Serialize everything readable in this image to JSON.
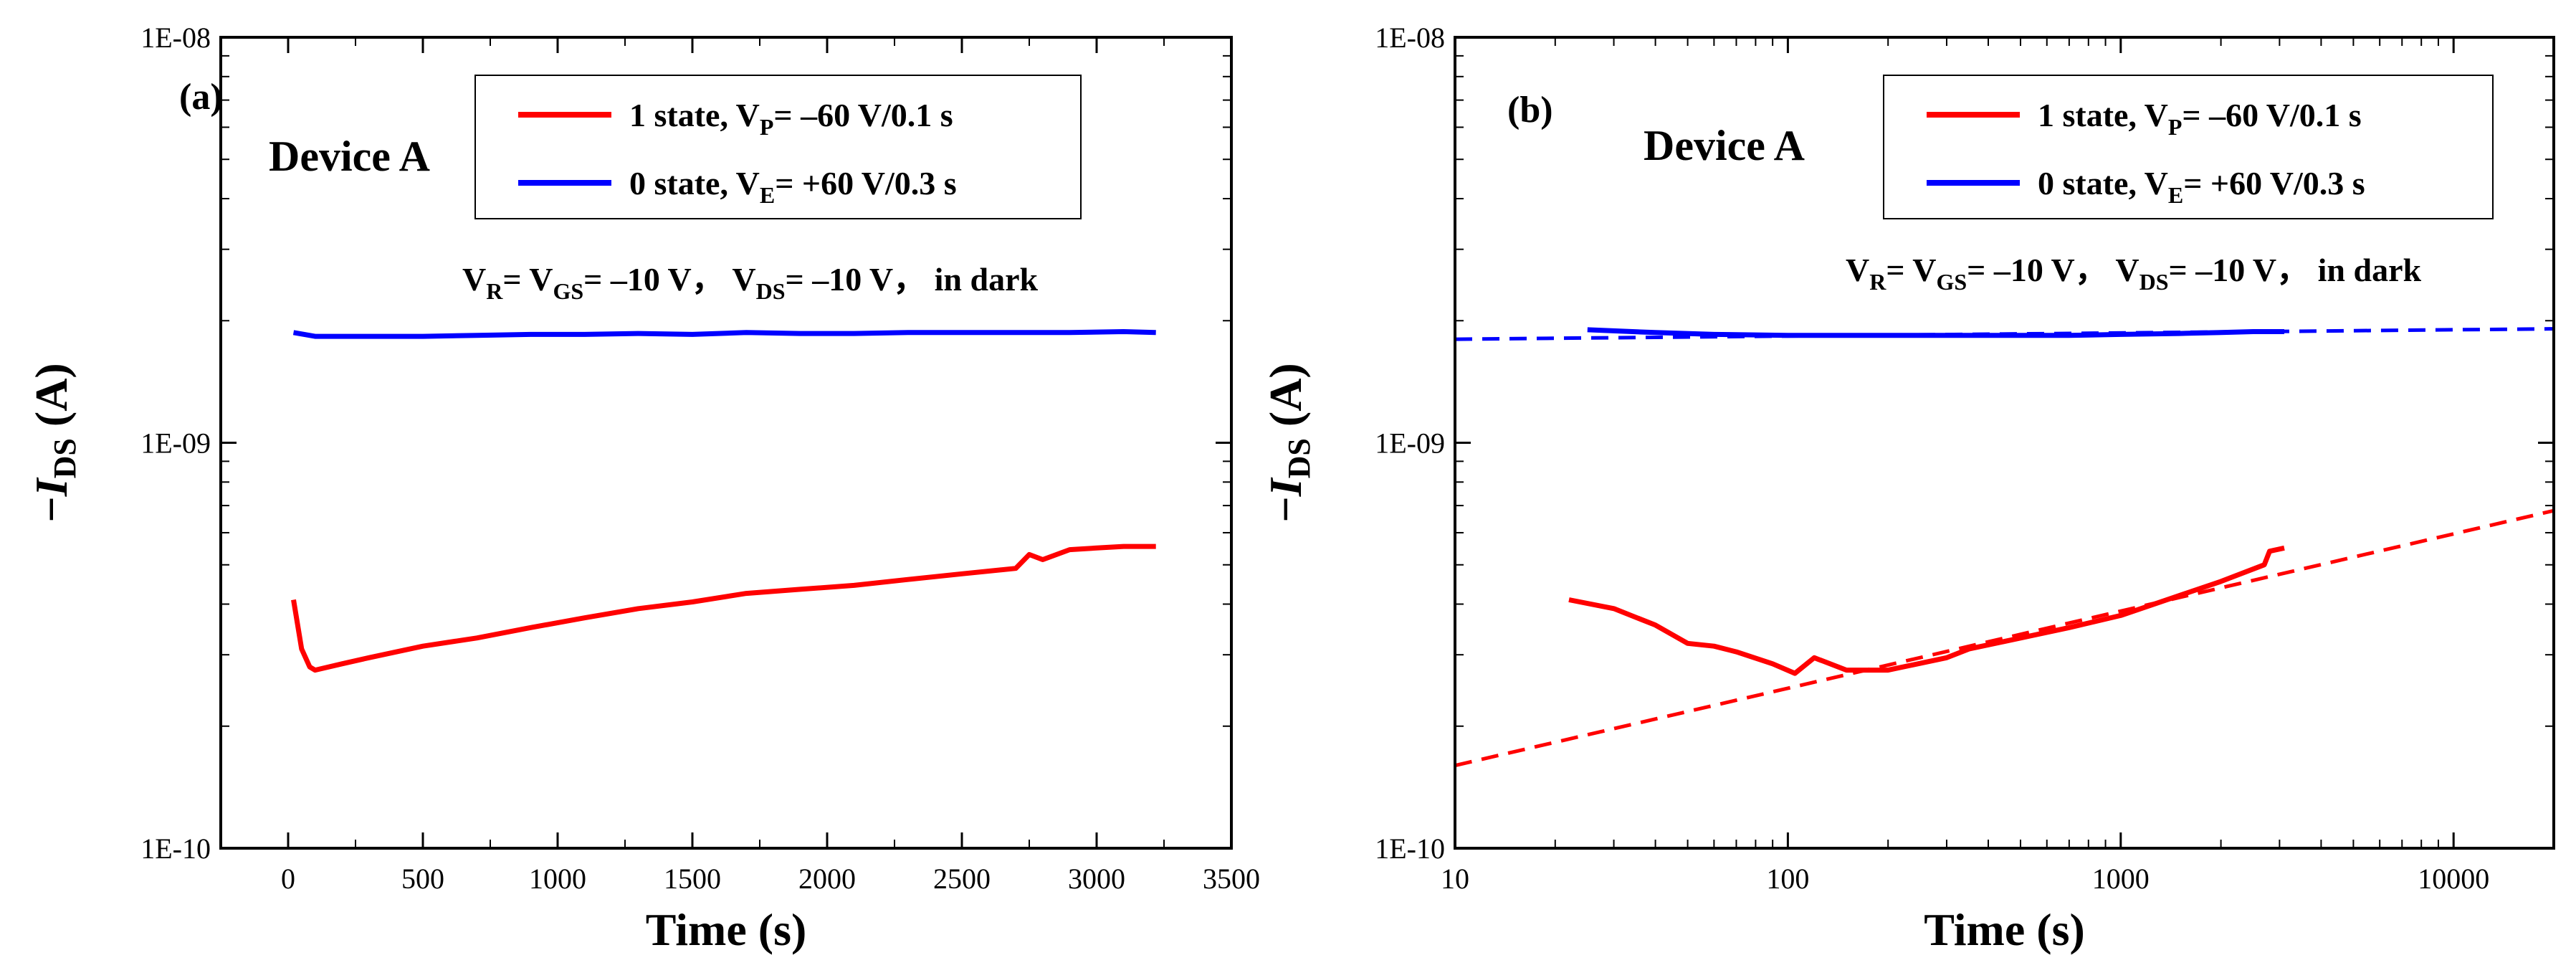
{
  "colors": {
    "state1": "#ff0000",
    "state0": "#0000ff",
    "axis": "#000000"
  },
  "chart_data": [
    {
      "type": "line",
      "panel_label": "(a)",
      "device_label": "Device  A",
      "xscale": "linear",
      "yscale": "log",
      "xlabel": "Time (s)",
      "ylabel": {
        "prefix": "−",
        "symbol": "I",
        "subscript": "DS",
        "unit": " (A)"
      },
      "xlim": [
        -250,
        3500
      ],
      "ylim": [
        1e-10,
        1e-08
      ],
      "xticks": [
        0,
        500,
        1000,
        1500,
        2000,
        2500,
        3000,
        3500
      ],
      "xtick_labels": [
        "0",
        "500",
        "1000",
        "1500",
        "2000",
        "2500",
        "3000",
        "3500"
      ],
      "yticks": [
        1e-10,
        1e-09,
        1e-08
      ],
      "ytick_labels": [
        "1E-10",
        "1E-09",
        "1E-08"
      ],
      "legend": [
        {
          "label": "1 state, V",
          "sub": "P",
          "rest": "= –60 V/0.1 s",
          "color": "#ff0000"
        },
        {
          "label": "0 state, V",
          "sub": "E",
          "rest": "= +60 V/0.3 s",
          "color": "#0000ff"
        }
      ],
      "condition": [
        {
          "t": "V",
          "s": "R"
        },
        {
          "t": "= V",
          "s": "GS"
        },
        {
          "t": "= –10 V， V",
          "s": "DS"
        },
        {
          "t": "= –10 V， in dark",
          "s": ""
        }
      ],
      "series": [
        {
          "name": "0 state",
          "color": "#0000ff",
          "style": "solid",
          "x": [
            20,
            100,
            300,
            500,
            700,
            900,
            1100,
            1300,
            1500,
            1700,
            1900,
            2100,
            2300,
            2500,
            2700,
            2900,
            3100,
            3220
          ],
          "y": [
            1.87e-09,
            1.83e-09,
            1.83e-09,
            1.83e-09,
            1.84e-09,
            1.85e-09,
            1.85e-09,
            1.86e-09,
            1.85e-09,
            1.87e-09,
            1.86e-09,
            1.86e-09,
            1.87e-09,
            1.87e-09,
            1.87e-09,
            1.87e-09,
            1.88e-09,
            1.87e-09
          ]
        },
        {
          "name": "1 state",
          "color": "#ff0000",
          "style": "solid",
          "x": [
            20,
            50,
            80,
            100,
            200,
            300,
            500,
            700,
            900,
            1100,
            1300,
            1500,
            1700,
            1900,
            2100,
            2300,
            2500,
            2700,
            2750,
            2800,
            2900,
            3000,
            3100,
            3220
          ],
          "y": [
            4.1e-10,
            3.1e-10,
            2.8e-10,
            2.75e-10,
            2.85e-10,
            2.95e-10,
            3.15e-10,
            3.3e-10,
            3.5e-10,
            3.7e-10,
            3.9e-10,
            4.05e-10,
            4.25e-10,
            4.35e-10,
            4.45e-10,
            4.6e-10,
            4.75e-10,
            4.9e-10,
            5.3e-10,
            5.15e-10,
            5.45e-10,
            5.5e-10,
            5.55e-10,
            5.55e-10
          ]
        }
      ]
    },
    {
      "type": "line",
      "panel_label": "(b)",
      "device_label": "Device  A",
      "xscale": "log",
      "yscale": "log",
      "xlabel": "Time (s)",
      "ylabel": {
        "prefix": "−",
        "symbol": "I",
        "subscript": "DS",
        "unit": " (A)"
      },
      "xlim": [
        10,
        20000
      ],
      "ylim": [
        1e-10,
        1e-08
      ],
      "xticks": [
        10,
        100,
        1000,
        10000
      ],
      "xtick_labels": [
        "10",
        "100",
        "1000",
        "10000"
      ],
      "yticks": [
        1e-10,
        1e-09,
        1e-08
      ],
      "ytick_labels": [
        "1E-10",
        "1E-09",
        "1E-08"
      ],
      "legend": [
        {
          "label": "1 state, V",
          "sub": "P",
          "rest": "= –60 V/0.1 s",
          "color": "#ff0000"
        },
        {
          "label": "0 state, V",
          "sub": "E",
          "rest": "= +60 V/0.3 s",
          "color": "#0000ff"
        }
      ],
      "condition": [
        {
          "t": "V",
          "s": "R"
        },
        {
          "t": "= V",
          "s": "GS"
        },
        {
          "t": "= –10 V， V",
          "s": "DS"
        },
        {
          "t": "= –10 V， in dark",
          "s": ""
        }
      ],
      "series": [
        {
          "name": "0 state",
          "color": "#0000ff",
          "style": "solid",
          "x": [
            25,
            40,
            60,
            100,
            200,
            400,
            700,
            1000,
            1500,
            2000,
            2500,
            3100
          ],
          "y": [
            1.9e-09,
            1.87e-09,
            1.85e-09,
            1.84e-09,
            1.84e-09,
            1.84e-09,
            1.84e-09,
            1.85e-09,
            1.86e-09,
            1.87e-09,
            1.88e-09,
            1.88e-09
          ]
        },
        {
          "name": "1 state",
          "color": "#ff0000",
          "style": "solid",
          "x": [
            22,
            30,
            40,
            50,
            60,
            70,
            90,
            105,
            120,
            150,
            200,
            300,
            350,
            500,
            700,
            1000,
            1500,
            2000,
            2700,
            2800,
            3100
          ],
          "y": [
            4.1e-10,
            3.9e-10,
            3.55e-10,
            3.2e-10,
            3.15e-10,
            3.05e-10,
            2.85e-10,
            2.7e-10,
            2.95e-10,
            2.75e-10,
            2.75e-10,
            2.95e-10,
            3.1e-10,
            3.3e-10,
            3.5e-10,
            3.75e-10,
            4.2e-10,
            4.55e-10,
            5e-10,
            5.4e-10,
            5.5e-10
          ]
        },
        {
          "name": "0 state fit",
          "color": "#0000ff",
          "style": "dashed",
          "x": [
            10,
            20000
          ],
          "y": [
            1.8e-09,
            1.91e-09
          ]
        },
        {
          "name": "1 state fit",
          "color": "#ff0000",
          "style": "dashed",
          "x": [
            10,
            20000
          ],
          "y": [
            1.6e-10,
            6.8e-10
          ]
        }
      ]
    }
  ]
}
